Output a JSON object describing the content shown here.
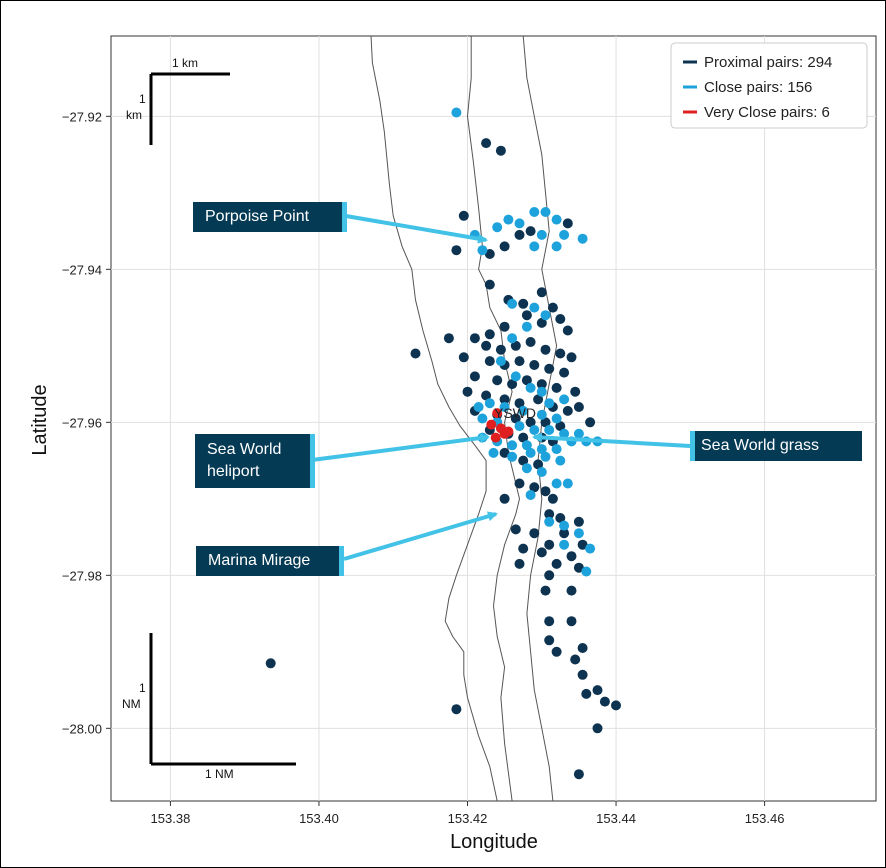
{
  "colors": {
    "proximal": "#0d3350",
    "close": "#1ea2dc",
    "very_close": "#e02020",
    "arrow": "#41c2e6",
    "callout_bg": "#053a55",
    "coast": "#555555",
    "grid": "#e0e0e0"
  },
  "chart_data": {
    "type": "scatter",
    "xlabel": "Longitude",
    "ylabel": "Latitude",
    "xlim": [
      153.372,
      153.475
    ],
    "ylim": [
      -28.0095,
      -27.9095
    ],
    "x_ticks": [
      153.38,
      153.4,
      153.42,
      153.44,
      153.46
    ],
    "x_tick_labels": [
      "153.38",
      "153.40",
      "153.42",
      "153.44",
      "153.46"
    ],
    "y_ticks": [
      -27.92,
      -27.94,
      -27.96,
      -27.98,
      -28.0
    ],
    "y_tick_labels": [
      "−27.92",
      "−27.94",
      "−27.96",
      "−27.98",
      "−28.00"
    ],
    "grid": true,
    "legend_position": "top-right",
    "legend": [
      {
        "label": "Proximal pairs: 294",
        "color": "#0d3350"
      },
      {
        "label": "Close pairs: 156",
        "color": "#1ea2dc"
      },
      {
        "label": "Very Close pairs: 6",
        "color": "#e02020"
      }
    ],
    "annotations": {
      "airport_label": "YSWD",
      "scale_top_horizontal": "1 km",
      "scale_top_vertical": "1\nkm",
      "scale_bottom_horizontal": "1 NM",
      "scale_bottom_vertical": "1\nNM"
    },
    "coastline_west": [
      [
        153.407,
        -27.9095
      ],
      [
        153.4072,
        -27.913
      ],
      [
        153.4082,
        -27.918
      ],
      [
        153.4088,
        -27.922
      ],
      [
        153.4095,
        -27.929
      ],
      [
        153.41,
        -27.933
      ],
      [
        153.4112,
        -27.937
      ],
      [
        153.4125,
        -27.94
      ],
      [
        153.413,
        -27.944
      ],
      [
        153.414,
        -27.948
      ],
      [
        153.4152,
        -27.952
      ],
      [
        153.416,
        -27.955
      ],
      [
        153.4175,
        -27.958
      ],
      [
        153.419,
        -27.9605
      ],
      [
        153.421,
        -27.963
      ],
      [
        153.4225,
        -27.965
      ],
      [
        153.4225,
        -27.969
      ],
      [
        153.4215,
        -27.972
      ],
      [
        153.42,
        -27.976
      ],
      [
        153.4185,
        -27.98
      ],
      [
        153.4175,
        -27.983
      ],
      [
        153.417,
        -27.986
      ],
      [
        153.418,
        -27.988
      ],
      [
        153.4195,
        -27.99
      ],
      [
        153.4195,
        -27.993
      ],
      [
        153.42,
        -27.996
      ],
      [
        153.4215,
        -28.001
      ],
      [
        153.423,
        -28.005
      ],
      [
        153.424,
        -28.0095
      ]
    ],
    "coastline_east": [
      [
        153.4205,
        -27.9095
      ],
      [
        153.4205,
        -27.915
      ],
      [
        153.42,
        -27.92
      ],
      [
        153.4208,
        -27.926
      ],
      [
        153.4215,
        -27.932
      ],
      [
        153.422,
        -27.937
      ],
      [
        153.4215,
        -27.94
      ],
      [
        153.4225,
        -27.942
      ],
      [
        153.423,
        -27.945
      ],
      [
        153.4245,
        -27.948
      ],
      [
        153.425,
        -27.952
      ],
      [
        153.426,
        -27.956
      ],
      [
        153.425,
        -27.96
      ],
      [
        153.4255,
        -27.964
      ],
      [
        153.4265,
        -27.968
      ],
      [
        153.427,
        -27.97
      ],
      [
        153.4265,
        -27.972
      ],
      [
        153.425,
        -27.976
      ],
      [
        153.424,
        -27.98
      ],
      [
        153.4235,
        -27.984
      ],
      [
        153.424,
        -27.988
      ],
      [
        153.425,
        -27.992
      ],
      [
        153.4245,
        -27.996
      ],
      [
        153.425,
        -28.002
      ],
      [
        153.426,
        -28.0095
      ]
    ],
    "coastline_spit": [
      [
        153.4275,
        -27.9095
      ],
      [
        153.428,
        -27.915
      ],
      [
        153.429,
        -27.92
      ],
      [
        153.43,
        -27.925
      ],
      [
        153.4305,
        -27.93
      ],
      [
        153.431,
        -27.935
      ],
      [
        153.43,
        -27.94
      ],
      [
        153.431,
        -27.945
      ],
      [
        153.432,
        -27.95
      ],
      [
        153.431,
        -27.955
      ],
      [
        153.43,
        -27.96
      ],
      [
        153.4295,
        -27.965
      ],
      [
        153.43,
        -27.97
      ],
      [
        153.4295,
        -27.975
      ],
      [
        153.4285,
        -27.98
      ],
      [
        153.428,
        -27.985
      ],
      [
        153.4285,
        -27.99
      ],
      [
        153.429,
        -27.995
      ],
      [
        153.43,
        -28.0
      ],
      [
        153.431,
        -28.005
      ],
      [
        153.4315,
        -28.0095
      ]
    ],
    "series": [
      {
        "name": "Proximal pairs: 294",
        "color": "#0d3350",
        "points": [
          [
            153.4225,
            -27.9235
          ],
          [
            153.4245,
            -27.9245
          ],
          [
            153.4195,
            -27.933
          ],
          [
            153.425,
            -27.937
          ],
          [
            153.4285,
            -27.935
          ],
          [
            153.4335,
            -27.934
          ],
          [
            153.427,
            -27.9355
          ],
          [
            153.423,
            -27.938
          ],
          [
            153.4185,
            -27.9375
          ],
          [
            153.423,
            -27.942
          ],
          [
            153.4255,
            -27.944
          ],
          [
            153.4275,
            -27.9445
          ],
          [
            153.43,
            -27.943
          ],
          [
            153.4315,
            -27.945
          ],
          [
            153.4325,
            -27.9465
          ],
          [
            153.4335,
            -27.948
          ],
          [
            153.43,
            -27.947
          ],
          [
            153.428,
            -27.946
          ],
          [
            153.425,
            -27.9475
          ],
          [
            153.423,
            -27.9485
          ],
          [
            153.4175,
            -27.949
          ],
          [
            153.421,
            -27.949
          ],
          [
            153.4225,
            -27.95
          ],
          [
            153.4245,
            -27.9505
          ],
          [
            153.4265,
            -27.95
          ],
          [
            153.4285,
            -27.9495
          ],
          [
            153.4305,
            -27.9505
          ],
          [
            153.4325,
            -27.951
          ],
          [
            153.434,
            -27.9515
          ],
          [
            153.413,
            -27.951
          ],
          [
            153.4195,
            -27.9515
          ],
          [
            153.423,
            -27.952
          ],
          [
            153.425,
            -27.9525
          ],
          [
            153.427,
            -27.952
          ],
          [
            153.429,
            -27.9525
          ],
          [
            153.431,
            -27.953
          ],
          [
            153.433,
            -27.9535
          ],
          [
            153.421,
            -27.954
          ],
          [
            153.424,
            -27.9545
          ],
          [
            153.426,
            -27.955
          ],
          [
            153.428,
            -27.9545
          ],
          [
            153.43,
            -27.955
          ],
          [
            153.432,
            -27.9555
          ],
          [
            153.4345,
            -27.956
          ],
          [
            153.42,
            -27.956
          ],
          [
            153.4225,
            -27.9565
          ],
          [
            153.425,
            -27.957
          ],
          [
            153.427,
            -27.9575
          ],
          [
            153.4295,
            -27.957
          ],
          [
            153.4315,
            -27.958
          ],
          [
            153.4335,
            -27.9585
          ],
          [
            153.435,
            -27.958
          ],
          [
            153.421,
            -27.9585
          ],
          [
            153.424,
            -27.959
          ],
          [
            153.4265,
            -27.9595
          ],
          [
            153.4285,
            -27.96
          ],
          [
            153.4305,
            -27.96
          ],
          [
            153.4325,
            -27.9605
          ],
          [
            153.4365,
            -27.96
          ],
          [
            153.423,
            -27.961
          ],
          [
            153.4255,
            -27.9615
          ],
          [
            153.4275,
            -27.962
          ],
          [
            153.43,
            -27.962
          ],
          [
            153.4315,
            -27.9625
          ],
          [
            153.425,
            -27.964
          ],
          [
            153.4275,
            -27.965
          ],
          [
            153.4295,
            -27.9655
          ],
          [
            153.427,
            -27.968
          ],
          [
            153.429,
            -27.9685
          ],
          [
            153.4305,
            -27.969
          ],
          [
            153.4315,
            -27.97
          ],
          [
            153.425,
            -27.97
          ],
          [
            153.431,
            -27.972
          ],
          [
            153.4325,
            -27.9725
          ],
          [
            153.435,
            -27.973
          ],
          [
            153.4265,
            -27.974
          ],
          [
            153.429,
            -27.9745
          ],
          [
            153.433,
            -27.9745
          ],
          [
            153.431,
            -27.976
          ],
          [
            153.4355,
            -27.976
          ],
          [
            153.4275,
            -27.9765
          ],
          [
            153.43,
            -27.977
          ],
          [
            153.427,
            -27.9785
          ],
          [
            153.432,
            -27.9785
          ],
          [
            153.434,
            -27.9775
          ],
          [
            153.435,
            -27.979
          ],
          [
            153.431,
            -27.98
          ],
          [
            153.434,
            -27.982
          ],
          [
            153.4305,
            -27.982
          ],
          [
            153.431,
            -27.986
          ],
          [
            153.434,
            -27.986
          ],
          [
            153.4355,
            -27.9895
          ],
          [
            153.431,
            -27.9885
          ],
          [
            153.432,
            -27.99
          ],
          [
            153.4345,
            -27.991
          ],
          [
            153.4355,
            -27.993
          ],
          [
            153.436,
            -27.9955
          ],
          [
            153.4375,
            -27.995
          ],
          [
            153.4385,
            -27.9965
          ],
          [
            153.44,
            -27.997
          ],
          [
            153.4375,
            -28.0
          ],
          [
            153.435,
            -28.006
          ],
          [
            153.4185,
            -27.9975
          ],
          [
            153.3935,
            -27.9915
          ]
        ]
      },
      {
        "name": "Close pairs: 156",
        "color": "#1ea2dc",
        "points": [
          [
            153.4185,
            -27.9195
          ],
          [
            153.4255,
            -27.9335
          ],
          [
            153.429,
            -27.9325
          ],
          [
            153.4305,
            -27.9325
          ],
          [
            153.432,
            -27.9335
          ],
          [
            153.424,
            -27.9345
          ],
          [
            153.427,
            -27.934
          ],
          [
            153.43,
            -27.9355
          ],
          [
            153.433,
            -27.9355
          ],
          [
            153.421,
            -27.9355
          ],
          [
            153.422,
            -27.9375
          ],
          [
            153.429,
            -27.937
          ],
          [
            153.432,
            -27.937
          ],
          [
            153.4355,
            -27.936
          ],
          [
            153.426,
            -27.9445
          ],
          [
            153.429,
            -27.945
          ],
          [
            153.4305,
            -27.946
          ],
          [
            153.428,
            -27.9475
          ],
          [
            153.426,
            -27.949
          ],
          [
            153.4245,
            -27.952
          ],
          [
            153.4265,
            -27.954
          ],
          [
            153.4285,
            -27.9555
          ],
          [
            153.43,
            -27.956
          ],
          [
            153.425,
            -27.958
          ],
          [
            153.4275,
            -27.9585
          ],
          [
            153.43,
            -27.959
          ],
          [
            153.432,
            -27.9595
          ],
          [
            153.422,
            -27.9595
          ],
          [
            153.424,
            -27.96
          ],
          [
            153.4215,
            -27.958
          ],
          [
            153.423,
            -27.9575
          ],
          [
            153.431,
            -27.9575
          ],
          [
            153.433,
            -27.957
          ],
          [
            153.427,
            -27.9605
          ],
          [
            153.429,
            -27.961
          ],
          [
            153.431,
            -27.961
          ],
          [
            153.433,
            -27.9615
          ],
          [
            153.435,
            -27.9615
          ],
          [
            153.422,
            -27.962
          ],
          [
            153.424,
            -27.9625
          ],
          [
            153.426,
            -27.963
          ],
          [
            153.428,
            -27.963
          ],
          [
            153.43,
            -27.9635
          ],
          [
            153.432,
            -27.9635
          ],
          [
            153.434,
            -27.9625
          ],
          [
            153.436,
            -27.9625
          ],
          [
            153.4375,
            -27.9625
          ],
          [
            153.4235,
            -27.964
          ],
          [
            153.426,
            -27.9645
          ],
          [
            153.4285,
            -27.964
          ],
          [
            153.4305,
            -27.9645
          ],
          [
            153.4325,
            -27.965
          ],
          [
            153.428,
            -27.966
          ],
          [
            153.43,
            -27.9665
          ],
          [
            153.432,
            -27.968
          ],
          [
            153.431,
            -27.973
          ],
          [
            153.433,
            -27.9735
          ],
          [
            153.435,
            -27.9745
          ],
          [
            153.433,
            -27.976
          ],
          [
            153.4365,
            -27.9765
          ],
          [
            153.436,
            -27.9795
          ],
          [
            153.4285,
            -27.9695
          ],
          [
            153.4335,
            -27.968
          ]
        ]
      },
      {
        "name": "Very Close pairs: 6",
        "color": "#e02020",
        "points": [
          [
            153.424,
            -27.9588
          ],
          [
            153.4232,
            -27.9603
          ],
          [
            153.4245,
            -27.9608
          ],
          [
            153.425,
            -27.9615
          ],
          [
            153.4238,
            -27.962
          ],
          [
            153.4255,
            -27.9612
          ]
        ]
      }
    ]
  },
  "callouts": {
    "porpoise": "Porpoise Point",
    "heliport_line1": "Sea World",
    "heliport_line2": "heliport",
    "grass": "Sea World grass",
    "marina": "Marina  Mirage"
  }
}
